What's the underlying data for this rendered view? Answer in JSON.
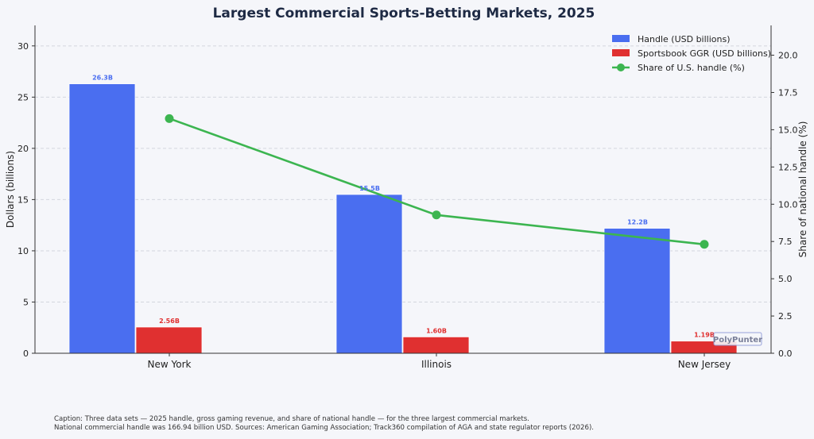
{
  "chart_data": {
    "type": "bar",
    "title": "Largest Commercial Sports-Betting Markets, 2025",
    "categories": [
      "New York",
      "Illinois",
      "New Jersey"
    ],
    "ylabel": "Dollars (billions)",
    "y2label": "Share of national handle (%)",
    "ylim": [
      0,
      32
    ],
    "y2lim": [
      0,
      22
    ],
    "yticks": [
      "0",
      "5",
      "10",
      "15",
      "20",
      "25",
      "30"
    ],
    "y2ticks": [
      "0.0",
      "2.5",
      "5.0",
      "7.5",
      "10.0",
      "12.5",
      "15.0",
      "17.5",
      "20.0"
    ],
    "grid": true,
    "legend_position": "top-right",
    "series": [
      {
        "name": "Handle (USD billions)",
        "type": "bar",
        "axis": "left",
        "color": "#4a6ef0",
        "values": [
          26.3,
          15.5,
          12.2
        ],
        "labels": [
          "26.3B",
          "15.5B",
          "12.2B"
        ]
      },
      {
        "name": "Sportsbook GGR (USD billions)",
        "type": "bar",
        "axis": "left",
        "color": "#e03030",
        "values": [
          2.56,
          1.6,
          1.19
        ],
        "labels": [
          "2.56B",
          "1.60B",
          "1.19B"
        ]
      },
      {
        "name": "Share of U.S. handle (%)",
        "type": "line",
        "axis": "right",
        "color": "#3cb550",
        "values": [
          15.75,
          9.28,
          7.31
        ]
      }
    ],
    "watermark": "PolyPunter"
  },
  "caption": {
    "line1": "Caption: Three data sets — 2025 handle, gross gaming revenue, and share of national handle — for the three largest commercial markets.",
    "line2": "National commercial handle was 166.94 billion USD. Sources: American Gaming Association; Track360 compilation of AGA and state regulator reports (2026)."
  }
}
